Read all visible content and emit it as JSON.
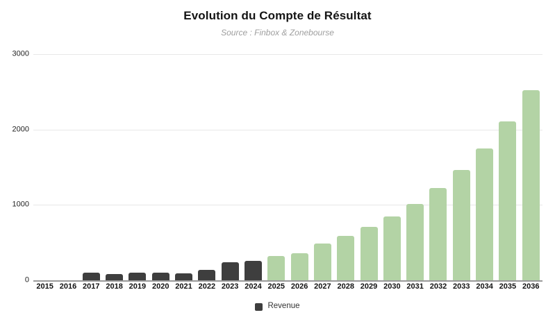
{
  "header": {
    "title": "Evolution du Compte de Résultat",
    "subtitle": "Source : Finbox & Zonebourse"
  },
  "legend": {
    "label": "Revenue",
    "swatch_color": "#3e3e3e"
  },
  "colors": {
    "historical_bar": "#3e3e3e",
    "projection_bar": "#b3d3a5",
    "gridline": "#e7e7e7",
    "axis_baseline": "#999999",
    "subtitle_text": "#9e9e9e"
  },
  "chart_data": {
    "type": "bar",
    "title": "Evolution du Compte de Résultat",
    "subtitle": "Source : Finbox & Zonebourse",
    "categories": [
      "2015",
      "2016",
      "2017",
      "2018",
      "2019",
      "2020",
      "2021",
      "2022",
      "2023",
      "2024",
      "2025",
      "2026",
      "2027",
      "2028",
      "2029",
      "2030",
      "2031",
      "2032",
      "2033",
      "2034",
      "2035",
      "2036"
    ],
    "series": [
      {
        "name": "Revenue",
        "values": [
          0,
          0,
          100,
          80,
          100,
          100,
          90,
          140,
          240,
          255,
          320,
          360,
          490,
          585,
          710,
          845,
          1015,
          1220,
          1460,
          1750,
          2110,
          2520
        ]
      }
    ],
    "historical_through": "2024",
    "xlabel": "",
    "ylabel": "",
    "ylim": [
      0,
      3000
    ],
    "yticks": [
      0,
      1000,
      2000,
      3000
    ],
    "grid": "horizontal-only",
    "legend_position": "bottom"
  }
}
